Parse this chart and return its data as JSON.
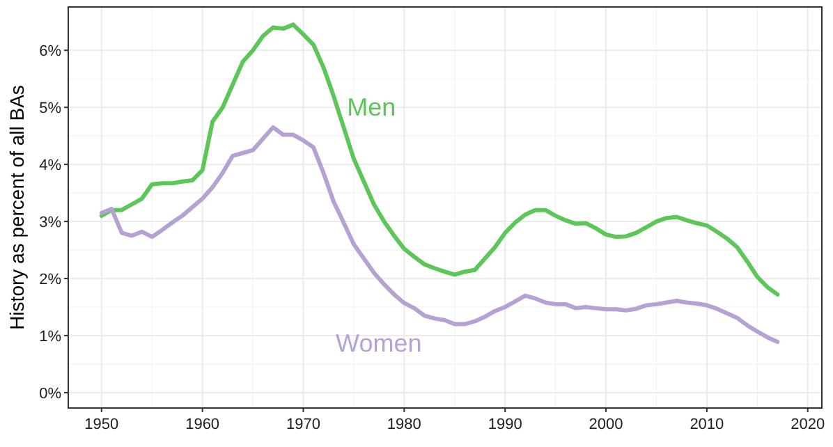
{
  "chart_data": {
    "type": "line",
    "ylabel": "History as percent of all BAs",
    "xlim": [
      1946.7,
      2021.4
    ],
    "xticks": [
      1950,
      1960,
      1970,
      1980,
      1990,
      2000,
      2010,
      2020
    ],
    "ylim": [
      -0.27,
      6.76
    ],
    "yticks": [
      {
        "value": 0,
        "label": "0%"
      },
      {
        "value": 1,
        "label": "1%"
      },
      {
        "value": 2,
        "label": "2%"
      },
      {
        "value": 3,
        "label": "3%"
      },
      {
        "value": 4,
        "label": "4%"
      },
      {
        "value": 5,
        "label": "5%"
      },
      {
        "value": 6,
        "label": "6%"
      }
    ],
    "grid": true,
    "line_style": "solid",
    "x": [
      1950,
      1951,
      1952,
      1953,
      1954,
      1955,
      1956,
      1957,
      1958,
      1959,
      1960,
      1961,
      1962,
      1963,
      1964,
      1965,
      1966,
      1967,
      1968,
      1969,
      1970,
      1971,
      1972,
      1973,
      1974,
      1975,
      1976,
      1977,
      1978,
      1979,
      1980,
      1981,
      1982,
      1983,
      1984,
      1985,
      1986,
      1987,
      1988,
      1989,
      1990,
      1991,
      1992,
      1993,
      1994,
      1995,
      1996,
      1997,
      1998,
      1999,
      2000,
      2001,
      2002,
      2003,
      2004,
      2005,
      2006,
      2007,
      2008,
      2009,
      2010,
      2011,
      2012,
      2013,
      2014,
      2015,
      2016,
      2017
    ],
    "series": [
      {
        "name": "Men",
        "color": "#5cc658",
        "values": [
          3.1,
          3.2,
          3.2,
          3.3,
          3.4,
          3.65,
          3.67,
          3.67,
          3.7,
          3.72,
          3.9,
          4.75,
          5.0,
          5.4,
          5.8,
          6.0,
          6.25,
          6.4,
          6.38,
          6.45,
          6.28,
          6.1,
          5.7,
          5.2,
          4.65,
          4.1,
          3.7,
          3.3,
          3.0,
          2.75,
          2.52,
          2.38,
          2.25,
          2.18,
          2.12,
          2.07,
          2.12,
          2.15,
          2.35,
          2.55,
          2.8,
          2.98,
          3.12,
          3.2,
          3.2,
          3.1,
          3.02,
          2.96,
          2.97,
          2.88,
          2.77,
          2.73,
          2.74,
          2.8,
          2.9,
          3.0,
          3.06,
          3.08,
          3.02,
          2.97,
          2.93,
          2.82,
          2.7,
          2.55,
          2.3,
          2.03,
          1.85,
          1.72
        ]
      },
      {
        "name": "Women",
        "color": "#b6a2d2",
        "values": [
          3.15,
          3.22,
          2.8,
          2.75,
          2.82,
          2.73,
          2.85,
          2.98,
          3.1,
          3.25,
          3.4,
          3.6,
          3.85,
          4.15,
          4.2,
          4.25,
          4.45,
          4.65,
          4.52,
          4.52,
          4.42,
          4.3,
          3.85,
          3.35,
          2.98,
          2.6,
          2.35,
          2.1,
          1.9,
          1.72,
          1.57,
          1.48,
          1.35,
          1.3,
          1.27,
          1.2,
          1.2,
          1.25,
          1.33,
          1.43,
          1.5,
          1.6,
          1.7,
          1.65,
          1.58,
          1.55,
          1.55,
          1.48,
          1.5,
          1.48,
          1.46,
          1.46,
          1.44,
          1.47,
          1.53,
          1.55,
          1.58,
          1.61,
          1.58,
          1.56,
          1.53,
          1.47,
          1.39,
          1.31,
          1.18,
          1.07,
          0.97,
          0.89
        ]
      }
    ]
  }
}
